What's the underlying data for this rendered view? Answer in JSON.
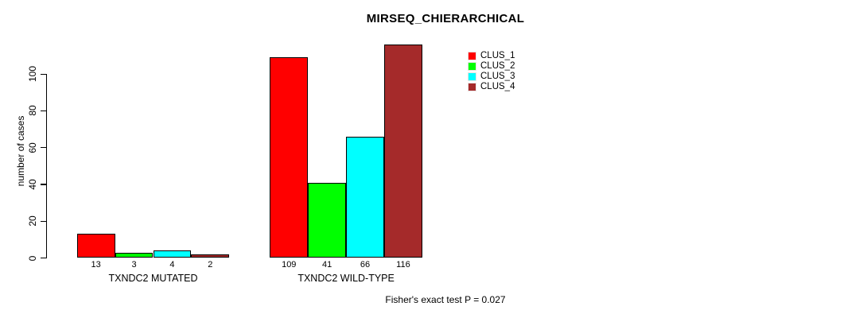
{
  "chart_data": {
    "type": "bar",
    "title": "MIRSEQ_CHIERARCHICAL",
    "xlabel": "",
    "ylabel": "number of cases",
    "ylim": [
      0,
      100
    ],
    "yticks": [
      0,
      20,
      40,
      60,
      80,
      100
    ],
    "grid": false,
    "legend_position": "top-right",
    "bar_value_labels_shown": true,
    "categories": [
      "TXNDC2 MUTATED",
      "TXNDC2 WILD-TYPE"
    ],
    "series": [
      {
        "name": "CLUS_1",
        "color": "#FF0000",
        "values": [
          13,
          109
        ]
      },
      {
        "name": "CLUS_2",
        "color": "#00FF00",
        "values": [
          3,
          41
        ]
      },
      {
        "name": "CLUS_3",
        "color": "#00FFFF",
        "values": [
          4,
          66
        ]
      },
      {
        "name": "CLUS_4",
        "color": "#A52A2A",
        "values": [
          2,
          116
        ]
      }
    ],
    "annotation": "Fisher's exact test P = 0.027"
  }
}
